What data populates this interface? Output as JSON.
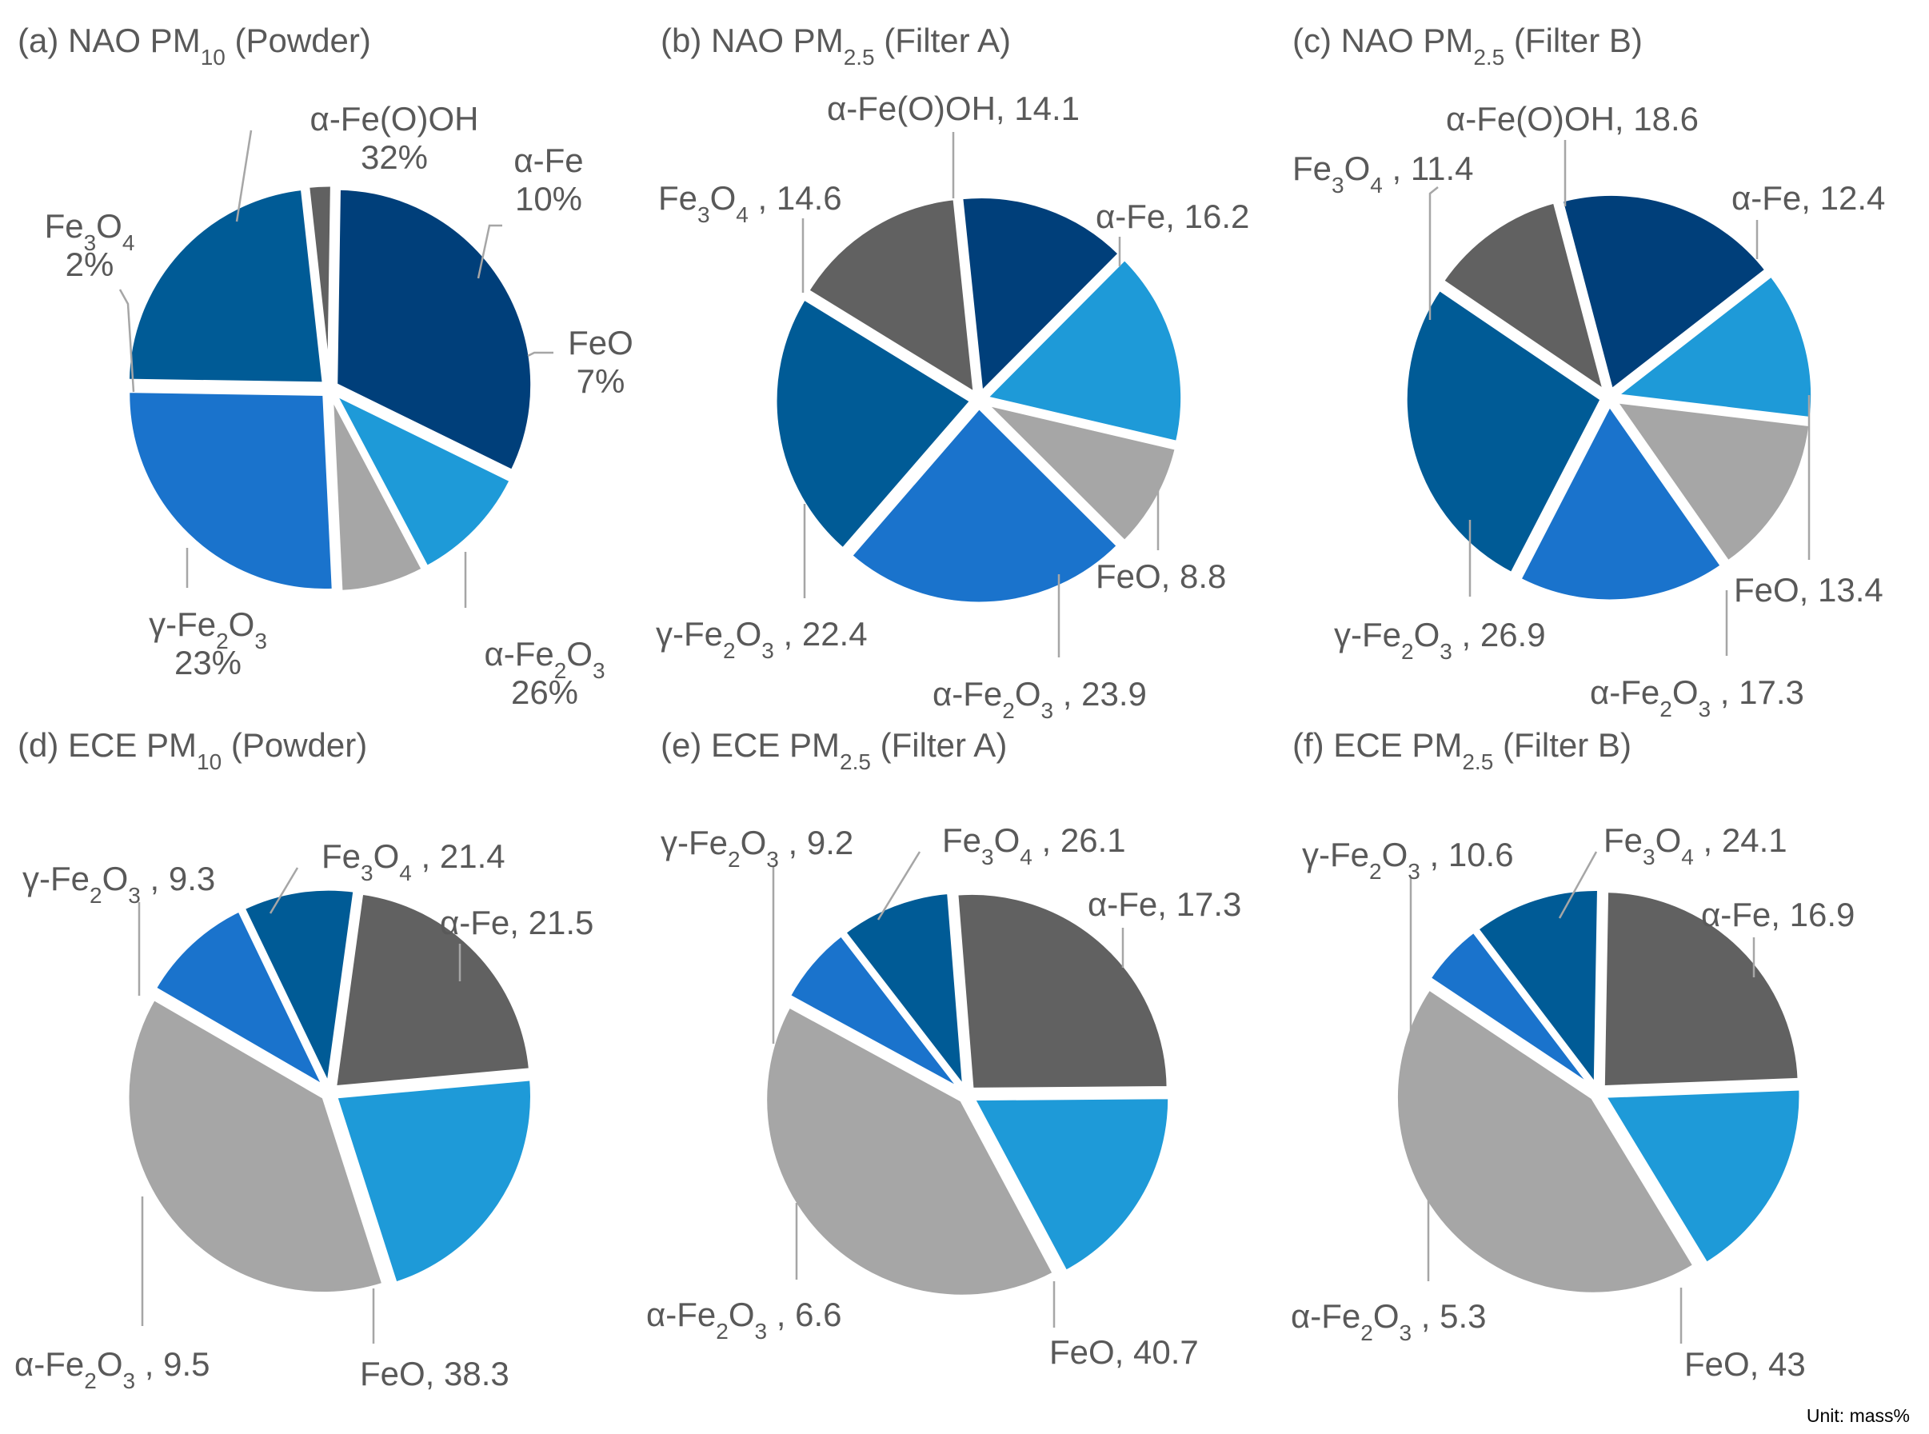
{
  "colors": {
    "a_Fe_O_OH": "#003f7a",
    "a_Fe": "#1e9ad8",
    "FeO": "#a6a6a6",
    "a_Fe2O3": "#1a73cc",
    "g_Fe2O3": "#005b96",
    "Fe3O4": "#616161",
    "label": "#595959",
    "leader": "#a6a6a6"
  },
  "unit_note": "Unit: mass%",
  "chart_data": [
    {
      "type": "pie",
      "id": "a",
      "title": {
        "prefix": "(a) NAO PM",
        "sub": "10",
        "suffix": " (Powder)"
      },
      "slices": [
        {
          "key": "a_Fe_O_OH",
          "value": 32,
          "label": [
            [
              [
                "t",
                "α-Fe(O)OH"
              ]
            ],
            [
              [
                "t",
                "32%"
              ]
            ]
          ]
        },
        {
          "key": "a_Fe",
          "value": 10,
          "label": [
            [
              [
                "t",
                "α-Fe"
              ]
            ],
            [
              [
                "t",
                "10%"
              ]
            ]
          ]
        },
        {
          "key": "FeO",
          "value": 7,
          "label": [
            [
              [
                "t",
                "FeO"
              ]
            ],
            [
              [
                "t",
                "7%"
              ]
            ]
          ]
        },
        {
          "key": "a_Fe2O3",
          "value": 26,
          "label": [
            [
              [
                "t",
                "α-Fe"
              ],
              [
                "s",
                "2"
              ],
              [
                "t",
                "O"
              ],
              [
                "s",
                "3"
              ]
            ],
            [
              [
                "t",
                "26%"
              ]
            ]
          ]
        },
        {
          "key": "g_Fe2O3",
          "value": 23,
          "label": [
            [
              [
                "t",
                "γ-Fe"
              ],
              [
                "s",
                "2"
              ],
              [
                "t",
                "O"
              ],
              [
                "s",
                "3"
              ]
            ],
            [
              [
                "t",
                "23%"
              ]
            ]
          ]
        },
        {
          "key": "Fe3O4",
          "value": 2,
          "label": [
            [
              [
                "t",
                "Fe"
              ],
              [
                "s",
                "3"
              ],
              [
                "t",
                "O"
              ],
              [
                "s",
                "4"
              ]
            ],
            [
              [
                "t",
                "2%"
              ]
            ]
          ]
        }
      ]
    },
    {
      "type": "pie",
      "id": "b",
      "title": {
        "prefix": "(b) NAO PM",
        "sub": "2.5",
        "suffix": " (Filter A)"
      },
      "slices": [
        {
          "key": "a_Fe_O_OH",
          "value": 14.1,
          "label": [
            [
              [
                "t",
                "α-Fe(O)OH, 14.1"
              ]
            ]
          ]
        },
        {
          "key": "a_Fe",
          "value": 16.2,
          "label": [
            [
              [
                "t",
                "α-Fe, 16.2"
              ]
            ]
          ]
        },
        {
          "key": "FeO",
          "value": 8.8,
          "label": [
            [
              [
                "t",
                "FeO, 8.8"
              ]
            ]
          ]
        },
        {
          "key": "a_Fe2O3",
          "value": 23.9,
          "label": [
            [
              [
                "t",
                "α-Fe"
              ],
              [
                "s",
                "2"
              ],
              [
                "t",
                "O"
              ],
              [
                "s",
                "3"
              ],
              [
                "t",
                " , 23.9"
              ]
            ]
          ]
        },
        {
          "key": "g_Fe2O3",
          "value": 22.4,
          "label": [
            [
              [
                "t",
                "γ-Fe"
              ],
              [
                "s",
                "2"
              ],
              [
                "t",
                "O"
              ],
              [
                "s",
                "3"
              ],
              [
                "t",
                " , 22.4"
              ]
            ]
          ]
        },
        {
          "key": "Fe3O4",
          "value": 14.6,
          "label": [
            [
              [
                "t",
                "Fe"
              ],
              [
                "s",
                "3"
              ],
              [
                "t",
                "O"
              ],
              [
                "s",
                "4"
              ],
              [
                "t",
                " , 14.6"
              ]
            ]
          ]
        }
      ]
    },
    {
      "type": "pie",
      "id": "c",
      "title": {
        "prefix": "(c) NAO PM",
        "sub": "2.5",
        "suffix": " (Filter B)"
      },
      "slices": [
        {
          "key": "a_Fe_O_OH",
          "value": 18.6,
          "label": [
            [
              [
                "t",
                "α-Fe(O)OH, 18.6"
              ]
            ]
          ]
        },
        {
          "key": "a_Fe",
          "value": 12.4,
          "label": [
            [
              [
                "t",
                "α-Fe, 12.4"
              ]
            ]
          ]
        },
        {
          "key": "FeO",
          "value": 13.4,
          "label": [
            [
              [
                "t",
                "FeO, 13.4"
              ]
            ]
          ]
        },
        {
          "key": "a_Fe2O3",
          "value": 17.3,
          "label": [
            [
              [
                "t",
                "α-Fe"
              ],
              [
                "s",
                "2"
              ],
              [
                "t",
                "O"
              ],
              [
                "s",
                "3"
              ],
              [
                "t",
                " , 17.3"
              ]
            ]
          ]
        },
        {
          "key": "g_Fe2O3",
          "value": 26.9,
          "label": [
            [
              [
                "t",
                "γ-Fe"
              ],
              [
                "s",
                "2"
              ],
              [
                "t",
                "O"
              ],
              [
                "s",
                "3"
              ],
              [
                "t",
                " , 26.9"
              ]
            ]
          ]
        },
        {
          "key": "Fe3O4",
          "value": 11.4,
          "label": [
            [
              [
                "t",
                "Fe"
              ],
              [
                "s",
                "3"
              ],
              [
                "t",
                "O"
              ],
              [
                "s",
                "4"
              ],
              [
                "t",
                " , 11.4"
              ]
            ]
          ]
        }
      ]
    },
    {
      "type": "pie",
      "id": "d",
      "title": {
        "prefix": "(d) ECE PM",
        "sub": "10",
        "suffix": " (Powder)"
      },
      "slices": [
        {
          "key": "Fe3O4",
          "value": 21.4,
          "label": [
            [
              [
                "t",
                "Fe"
              ],
              [
                "s",
                "3"
              ],
              [
                "t",
                "O"
              ],
              [
                "s",
                "4"
              ],
              [
                "t",
                " , 21.4"
              ]
            ]
          ]
        },
        {
          "key": "a_Fe",
          "value": 21.5,
          "label": [
            [
              [
                "t",
                "α-Fe, 21.5"
              ]
            ]
          ]
        },
        {
          "key": "FeO",
          "value": 38.3,
          "label": [
            [
              [
                "t",
                "FeO, 38.3"
              ]
            ]
          ]
        },
        {
          "key": "a_Fe2O3",
          "value": 9.5,
          "label": [
            [
              [
                "t",
                "α-Fe"
              ],
              [
                "s",
                "2"
              ],
              [
                "t",
                "O"
              ],
              [
                "s",
                "3"
              ],
              [
                "t",
                " , 9.5"
              ]
            ]
          ]
        },
        {
          "key": "g_Fe2O3",
          "value": 9.3,
          "label": [
            [
              [
                "t",
                "γ-Fe"
              ],
              [
                "s",
                "2"
              ],
              [
                "t",
                "O"
              ],
              [
                "s",
                "3"
              ],
              [
                "t",
                " , 9.3"
              ]
            ]
          ]
        }
      ]
    },
    {
      "type": "pie",
      "id": "e",
      "title": {
        "prefix": "(e) ECE PM",
        "sub": "2.5",
        "suffix": " (Filter A)"
      },
      "slices": [
        {
          "key": "Fe3O4",
          "value": 26.1,
          "label": [
            [
              [
                "t",
                "Fe"
              ],
              [
                "s",
                "3"
              ],
              [
                "t",
                "O"
              ],
              [
                "s",
                "4"
              ],
              [
                "t",
                " , 26.1"
              ]
            ]
          ]
        },
        {
          "key": "a_Fe",
          "value": 17.3,
          "label": [
            [
              [
                "t",
                "α-Fe, 17.3"
              ]
            ]
          ]
        },
        {
          "key": "FeO",
          "value": 40.7,
          "label": [
            [
              [
                "t",
                "FeO, 40.7"
              ]
            ]
          ]
        },
        {
          "key": "a_Fe2O3",
          "value": 6.6,
          "label": [
            [
              [
                "t",
                "α-Fe"
              ],
              [
                "s",
                "2"
              ],
              [
                "t",
                "O"
              ],
              [
                "s",
                "3"
              ],
              [
                "t",
                " , 6.6"
              ]
            ]
          ]
        },
        {
          "key": "g_Fe2O3",
          "value": 9.2,
          "label": [
            [
              [
                "t",
                "γ-Fe"
              ],
              [
                "s",
                "2"
              ],
              [
                "t",
                "O"
              ],
              [
                "s",
                "3"
              ],
              [
                "t",
                " , 9.2"
              ]
            ]
          ]
        }
      ]
    },
    {
      "type": "pie",
      "id": "f",
      "title": {
        "prefix": "(f) ECE PM",
        "sub": "2.5",
        "suffix": " (Filter B)"
      },
      "slices": [
        {
          "key": "Fe3O4",
          "value": 24.1,
          "label": [
            [
              [
                "t",
                "Fe"
              ],
              [
                "s",
                "3"
              ],
              [
                "t",
                "O"
              ],
              [
                "s",
                "4"
              ],
              [
                "t",
                " , 24.1"
              ]
            ]
          ]
        },
        {
          "key": "a_Fe",
          "value": 16.9,
          "label": [
            [
              [
                "t",
                "α-Fe, 16.9"
              ]
            ]
          ]
        },
        {
          "key": "FeO",
          "value": 43,
          "label": [
            [
              [
                "t",
                "FeO, 43"
              ]
            ]
          ]
        },
        {
          "key": "a_Fe2O3",
          "value": 5.3,
          "label": [
            [
              [
                "t",
                "α-Fe"
              ],
              [
                "s",
                "2"
              ],
              [
                "t",
                "O"
              ],
              [
                "s",
                "3"
              ],
              [
                "t",
                " , 5.3"
              ]
            ]
          ]
        },
        {
          "key": "g_Fe2O3",
          "value": 10.6,
          "label": [
            [
              [
                "t",
                "γ-Fe"
              ],
              [
                "s",
                "2"
              ],
              [
                "t",
                "O"
              ],
              [
                "s",
                "3"
              ],
              [
                "t",
                " , 10.6"
              ]
            ]
          ]
        }
      ]
    }
  ]
}
